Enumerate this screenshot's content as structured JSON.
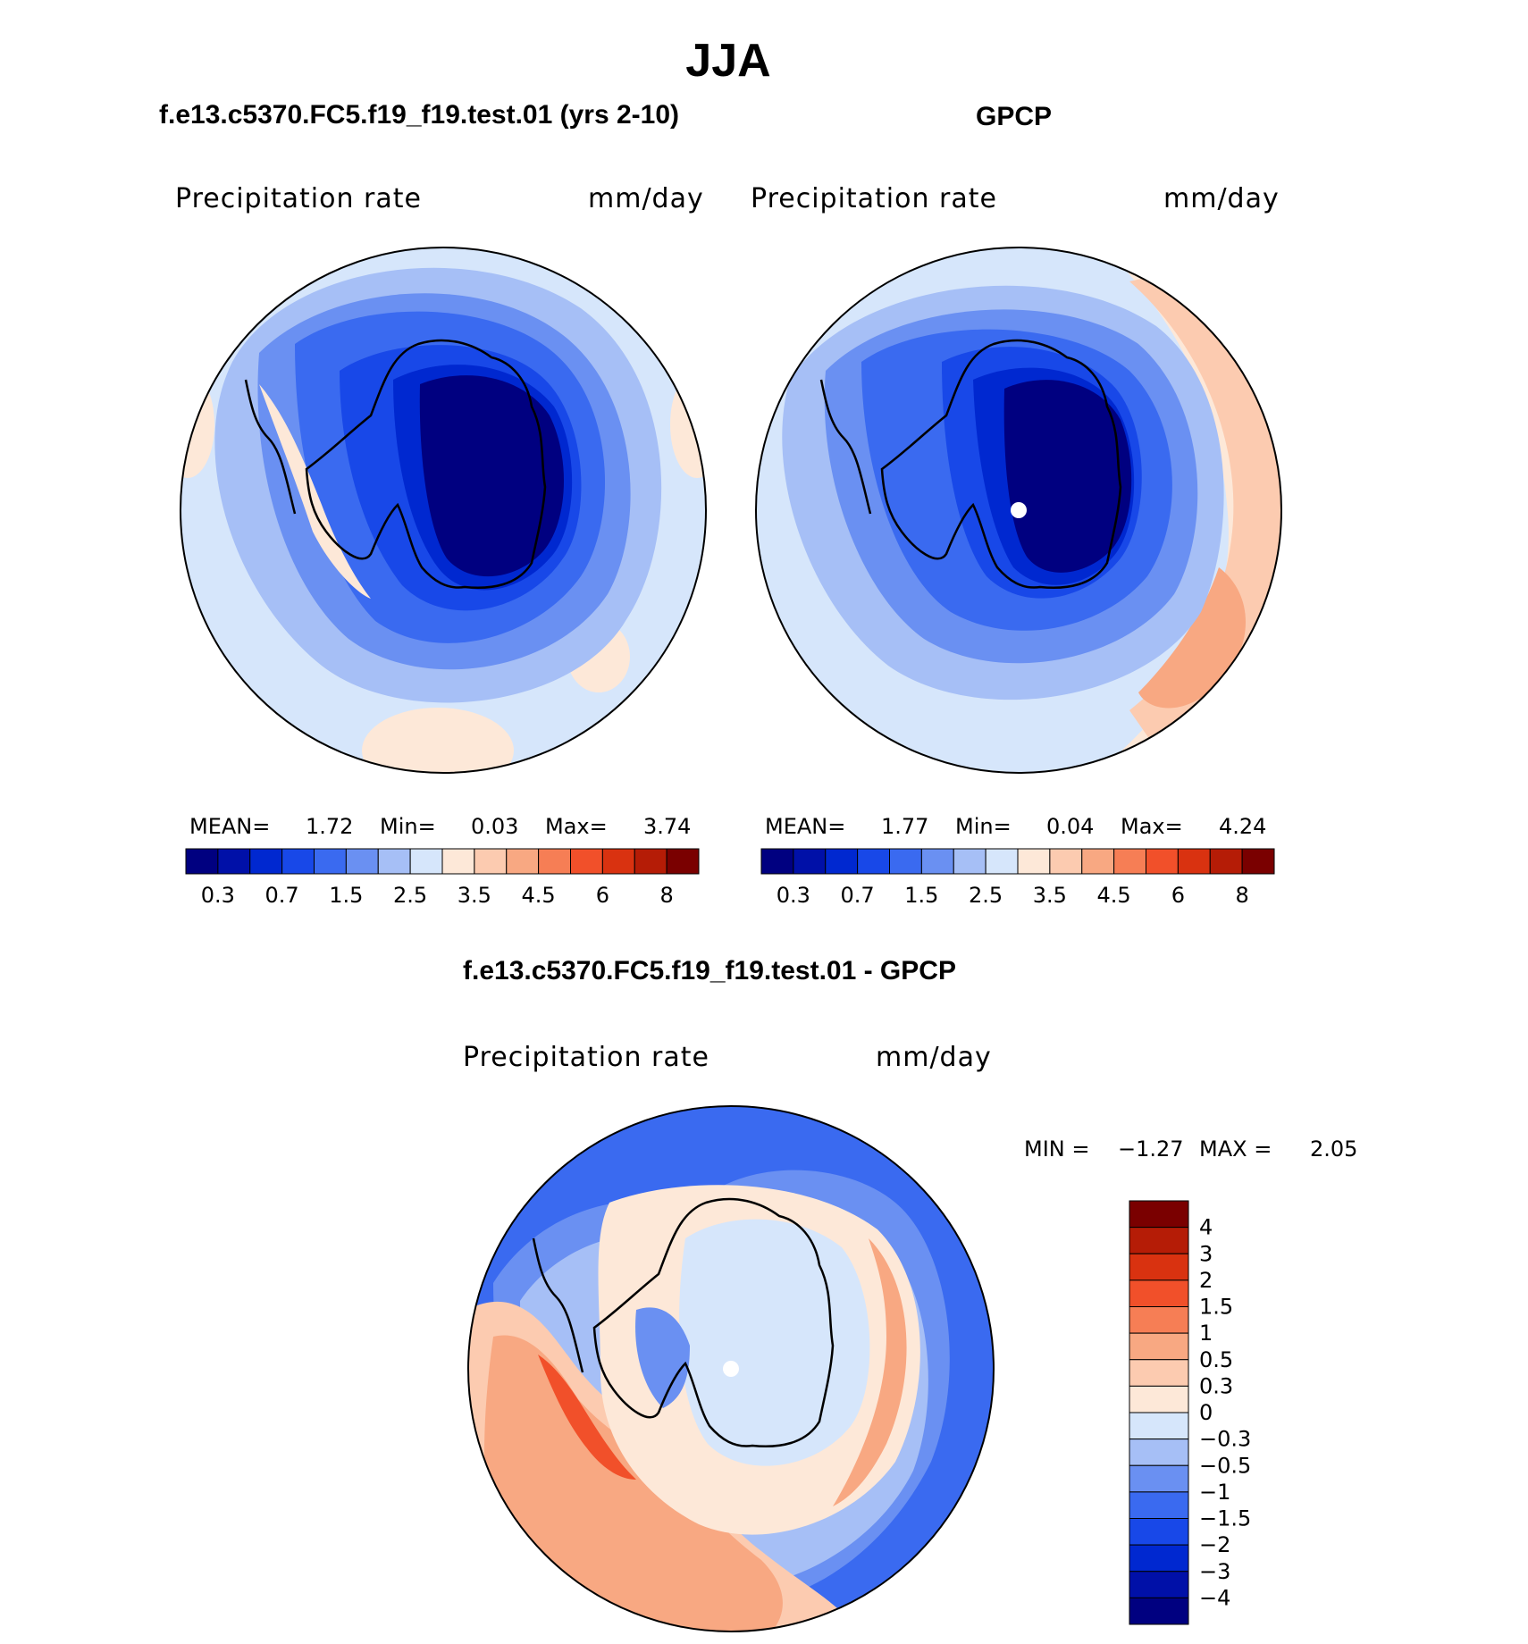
{
  "title": "JJA",
  "colors": {
    "absolute_scale": [
      "#000080",
      "#0010a8",
      "#0028d0",
      "#1848e8",
      "#3a6af0",
      "#6a90f2",
      "#a6bff6",
      "#d6e6fb",
      "#fde8d8",
      "#fccbb0",
      "#f8a882",
      "#f67e55",
      "#f1502a",
      "#d93210",
      "#b51c06",
      "#7a0000"
    ],
    "diff_scale": [
      "#000080",
      "#0010a8",
      "#0028d0",
      "#1848e8",
      "#3a6af0",
      "#6a90f2",
      "#a6bff6",
      "#d6e6fb",
      "#fde8d8",
      "#fccbb0",
      "#f8a882",
      "#f67e55",
      "#f1502a",
      "#d93210",
      "#b51c06",
      "#7a0000"
    ]
  },
  "panels": {
    "model": {
      "title": "f.e13.c5370.FC5.f19_f19.test.01 (yrs 2-10)",
      "variable": "Precipitation rate",
      "units": "mm/day",
      "stats": {
        "mean_label": "MEAN=",
        "mean": "1.72",
        "min_label": "Min=",
        "min": "0.03",
        "max_label": "Max=",
        "max": "3.74"
      }
    },
    "obs": {
      "title": "GPCP",
      "variable": "Precipitation rate",
      "units": "mm/day",
      "stats": {
        "mean_label": "MEAN=",
        "mean": "1.77",
        "min_label": "Min=",
        "min": "0.04",
        "max_label": "Max=",
        "max": "4.24"
      }
    },
    "diff": {
      "title": "f.e13.c5370.FC5.f19_f19.test.01 - GPCP",
      "variable": "Precipitation rate",
      "units": "mm/day",
      "stats": {
        "min_label": "MIN =",
        "min": "−1.27",
        "max_label": "MAX =",
        "max": "2.05"
      }
    }
  },
  "colorbar_absolute": {
    "tick_labels": [
      "0.3",
      "0.7",
      "1.5",
      "2.5",
      "3.5",
      "4.5",
      "6",
      "8"
    ]
  },
  "colorbar_diff": {
    "tick_labels": [
      "4",
      "3",
      "2",
      "1.5",
      "1",
      "0.5",
      "0.3",
      "0",
      "−0.3",
      "−0.5",
      "−1",
      "−1.5",
      "−2",
      "−3",
      "−4"
    ]
  }
}
